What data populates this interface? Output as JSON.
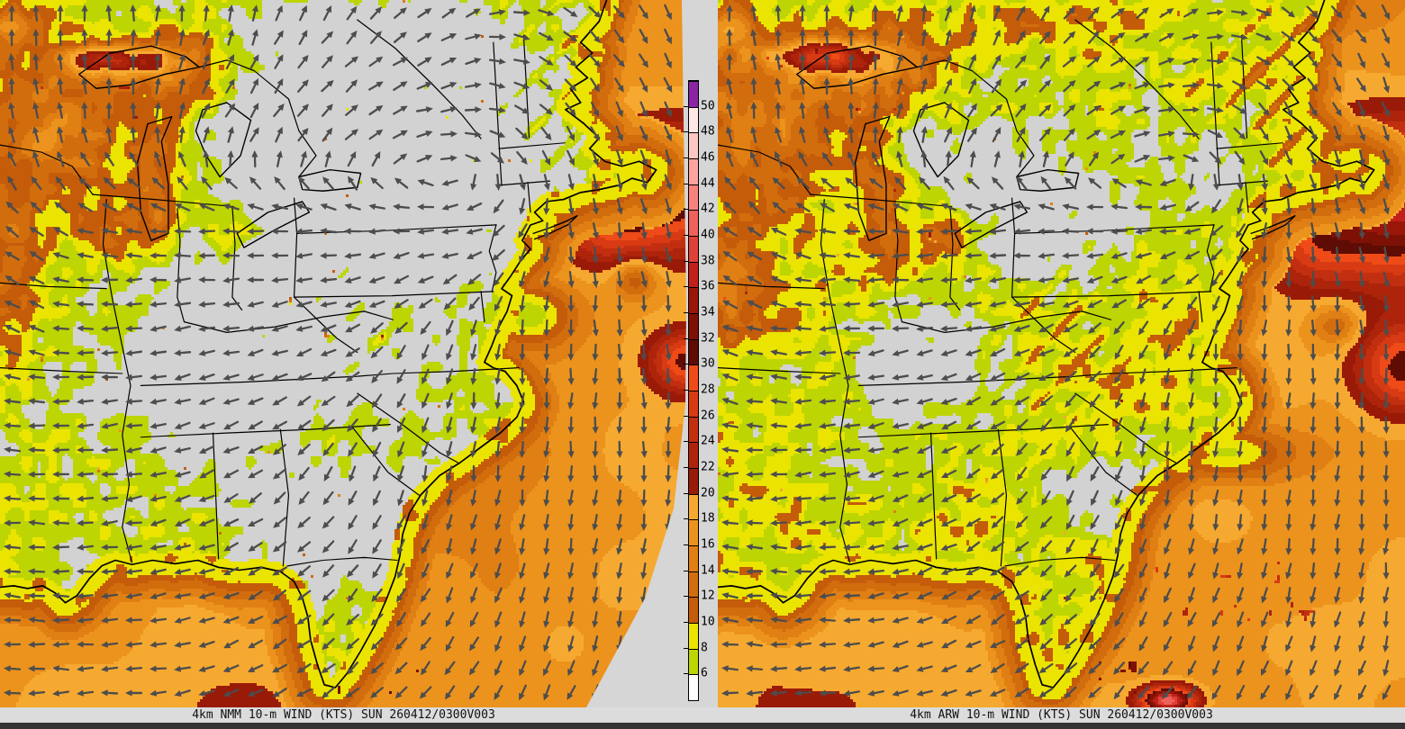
{
  "page": {
    "background": "#d6d6d6",
    "bottom_strip_color": "#333333"
  },
  "panels": [
    {
      "model": "NMM",
      "caption": "4km NMM 10-m WIND (KTS) SUN 260412/0300V003"
    },
    {
      "model": "ARW",
      "caption": "4km ARW 10-m WIND (KTS) SUN 260412/0300V003"
    }
  ],
  "colorbar": {
    "unit": "KTS",
    "tick_labels": [
      6,
      8,
      10,
      12,
      14,
      16,
      18,
      20,
      22,
      24,
      26,
      28,
      30,
      32,
      34,
      36,
      38,
      40,
      42,
      44,
      46,
      48,
      50
    ],
    "segments": [
      {
        "range": "<6",
        "color": "#ffffff"
      },
      {
        "range": "6-8",
        "color": "#bdd503"
      },
      {
        "range": "8-10",
        "color": "#eae400"
      },
      {
        "range": "10-12",
        "color": "#c45c0a"
      },
      {
        "range": "12-14",
        "color": "#d26d0e"
      },
      {
        "range": "14-16",
        "color": "#e07f13"
      },
      {
        "range": "16-18",
        "color": "#ec931d"
      },
      {
        "range": "18-20",
        "color": "#f6a930"
      },
      {
        "range": "20-22",
        "color": "#9a1a08"
      },
      {
        "range": "22-24",
        "color": "#ad240b"
      },
      {
        "range": "24-26",
        "color": "#c22f10"
      },
      {
        "range": "26-28",
        "color": "#d83a13"
      },
      {
        "range": "28-30",
        "color": "#ef4b18"
      },
      {
        "range": "30-32",
        "color": "#5f0c04"
      },
      {
        "range": "32-34",
        "color": "#7d1106"
      },
      {
        "range": "34-36",
        "color": "#9a1608"
      },
      {
        "range": "36-38",
        "color": "#c1211a"
      },
      {
        "range": "38-40",
        "color": "#df4037"
      },
      {
        "range": "40-42",
        "color": "#ef615a"
      },
      {
        "range": "42-44",
        "color": "#f8837d"
      },
      {
        "range": "44-46",
        "color": "#fca49f"
      },
      {
        "range": "46-48",
        "color": "#fec7c3"
      },
      {
        "range": "48-50",
        "color": "#ffe7e5"
      },
      {
        "range": ">50",
        "color": "#8a24a2"
      }
    ]
  },
  "map": {
    "calm_color": "#d2d2d2",
    "border_color": "#000000",
    "arrow_color": "#4d4d4d",
    "caption_bg": "#dcdcdc",
    "caption_color": "#111111"
  }
}
